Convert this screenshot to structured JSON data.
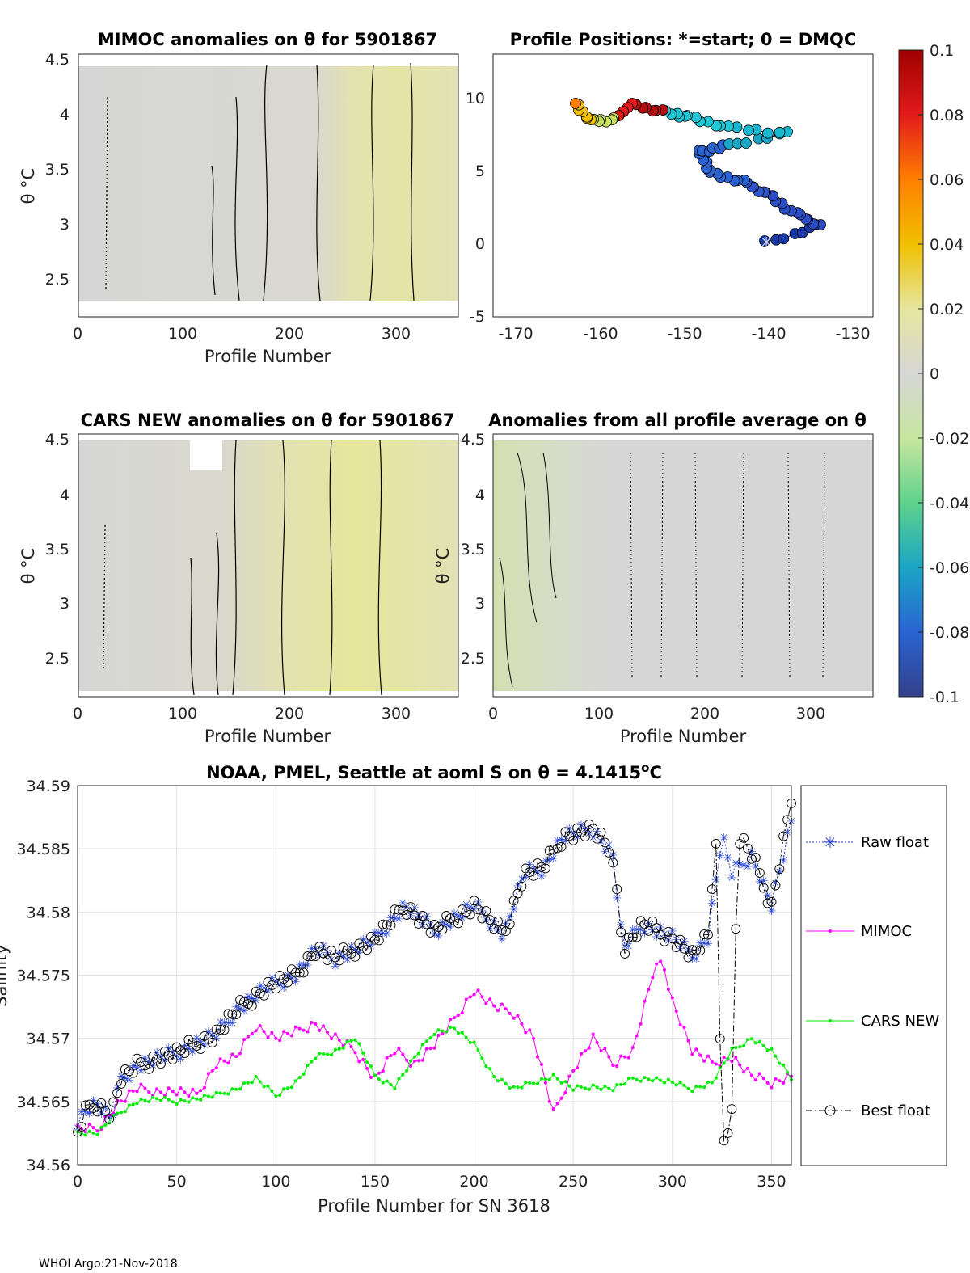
{
  "footer": "WHOI Argo:21-Nov-2018",
  "colors": {
    "raw": "#1f3fd6",
    "mimoc": "#ff00ff",
    "cars": "#00ee00",
    "best": "#000000",
    "panel_gray": "#d6d6d6",
    "panel_yellow": "#e6e6a8",
    "contour": "#000000"
  },
  "panels": {
    "mimoc": {
      "title": "MIMOC anomalies on θ  for 5901867",
      "ylabel": "θ °C",
      "xlabel": "Profile Number",
      "xticks": [
        "0",
        "100",
        "200",
        "300"
      ],
      "yticks": [
        "4.5",
        "4",
        "3.5",
        "3",
        "2.5"
      ]
    },
    "positions": {
      "title": "Profile Positions: *=start; 0 = DMQC",
      "xticks": [
        "-170",
        "-160",
        "-150",
        "-140",
        "-130"
      ],
      "yticks": [
        "10",
        "5",
        "0",
        "-5"
      ]
    },
    "cars": {
      "title": "CARS NEW anomalies on θ for 5901867",
      "ylabel": "θ °C",
      "xlabel": "Profile Number",
      "xticks": [
        "0",
        "100",
        "200",
        "300"
      ],
      "yticks": [
        "4.5",
        "4",
        "3.5",
        "3",
        "2.5"
      ]
    },
    "allavg": {
      "title": "Anomalies from all profile average on θ",
      "ylabel": "θ °C",
      "xlabel": "Profile Number",
      "xticks": [
        "0",
        "100",
        "200",
        "300"
      ],
      "yticks": [
        "4.5",
        "4",
        "3.5",
        "3",
        "2.5"
      ]
    }
  },
  "colorbar": {
    "labels": [
      "0.1",
      "0.08",
      "0.06",
      "0.04",
      "0.02",
      "0",
      "-0.02",
      "-0.04",
      "-0.06",
      "-0.08",
      "-0.1"
    ]
  },
  "chart_data": {
    "type": "line",
    "title": "NOAA, PMEL, Seattle at aoml S on θ = 4.1415°C",
    "title_prefix": "NOAA, PMEL, Seattle at aoml S on θ = 4.1415",
    "title_sup": "o",
    "title_suffix": "C",
    "xlabel": "Profile Number for SN 3618",
    "ylabel": "Salinity",
    "xlim": [
      0,
      360
    ],
    "ylim": [
      34.56,
      34.59
    ],
    "xticks": [
      "0",
      "50",
      "100",
      "150",
      "200",
      "250",
      "300",
      "350"
    ],
    "yticks": [
      "34.59",
      "34.585",
      "34.58",
      "34.575",
      "34.57",
      "34.565",
      "34.56"
    ],
    "legend": [
      "Raw float",
      "MIMOC",
      "CARS NEW",
      "Best float"
    ],
    "series": [
      {
        "name": "Raw float",
        "knots": [
          [
            0,
            34.5635
          ],
          [
            5,
            34.5645
          ],
          [
            10,
            34.5648
          ],
          [
            17,
            34.5635
          ],
          [
            22,
            34.5668
          ],
          [
            30,
            34.5678
          ],
          [
            40,
            34.5684
          ],
          [
            50,
            34.5688
          ],
          [
            60,
            34.5696
          ],
          [
            70,
            34.5703
          ],
          [
            80,
            34.5722
          ],
          [
            95,
            34.574
          ],
          [
            110,
            34.575
          ],
          [
            120,
            34.577
          ],
          [
            130,
            34.5763
          ],
          [
            150,
            34.5778
          ],
          [
            165,
            34.5805
          ],
          [
            180,
            34.5785
          ],
          [
            200,
            34.5805
          ],
          [
            215,
            34.5782
          ],
          [
            225,
            34.583
          ],
          [
            235,
            34.5835
          ],
          [
            245,
            34.586
          ],
          [
            260,
            34.5865
          ],
          [
            270,
            34.5845
          ],
          [
            275,
            34.577
          ],
          [
            285,
            34.579
          ],
          [
            300,
            34.578
          ],
          [
            310,
            34.5765
          ],
          [
            318,
            34.578
          ],
          [
            325,
            34.586
          ],
          [
            330,
            34.583
          ],
          [
            340,
            34.5845
          ],
          [
            350,
            34.5805
          ],
          [
            360,
            34.587
          ]
        ]
      },
      {
        "name": "MIMOC",
        "knots": [
          [
            0,
            34.5628
          ],
          [
            10,
            34.5628
          ],
          [
            20,
            34.5648
          ],
          [
            30,
            34.566
          ],
          [
            40,
            34.5658
          ],
          [
            50,
            34.5658
          ],
          [
            60,
            34.5655
          ],
          [
            70,
            34.568
          ],
          [
            80,
            34.5685
          ],
          [
            90,
            34.571
          ],
          [
            100,
            34.57
          ],
          [
            110,
            34.5705
          ],
          [
            120,
            34.5712
          ],
          [
            130,
            34.57
          ],
          [
            140,
            34.569
          ],
          [
            150,
            34.5668
          ],
          [
            160,
            34.569
          ],
          [
            170,
            34.568
          ],
          [
            180,
            34.5695
          ],
          [
            190,
            34.5715
          ],
          [
            200,
            34.5738
          ],
          [
            210,
            34.5725
          ],
          [
            220,
            34.572
          ],
          [
            230,
            34.57
          ],
          [
            240,
            34.564
          ],
          [
            250,
            34.5675
          ],
          [
            260,
            34.57
          ],
          [
            270,
            34.568
          ],
          [
            280,
            34.569
          ],
          [
            290,
            34.575
          ],
          [
            295,
            34.5762
          ],
          [
            300,
            34.573
          ],
          [
            310,
            34.569
          ],
          [
            320,
            34.568
          ],
          [
            330,
            34.5685
          ],
          [
            340,
            34.567
          ],
          [
            350,
            34.5665
          ],
          [
            360,
            34.567
          ]
        ]
      },
      {
        "name": "CARS NEW",
        "knots": [
          [
            0,
            34.5625
          ],
          [
            10,
            34.5625
          ],
          [
            20,
            34.564
          ],
          [
            30,
            34.565
          ],
          [
            40,
            34.5652
          ],
          [
            50,
            34.565
          ],
          [
            60,
            34.5652
          ],
          [
            70,
            34.5655
          ],
          [
            80,
            34.566
          ],
          [
            90,
            34.5668
          ],
          [
            100,
            34.5655
          ],
          [
            110,
            34.5665
          ],
          [
            120,
            34.5685
          ],
          [
            130,
            34.569
          ],
          [
            140,
            34.57
          ],
          [
            150,
            34.567
          ],
          [
            160,
            34.5662
          ],
          [
            170,
            34.5685
          ],
          [
            180,
            34.5705
          ],
          [
            190,
            34.5708
          ],
          [
            200,
            34.5695
          ],
          [
            210,
            34.567
          ],
          [
            220,
            34.566
          ],
          [
            230,
            34.5665
          ],
          [
            240,
            34.567
          ],
          [
            250,
            34.566
          ],
          [
            260,
            34.5662
          ],
          [
            270,
            34.566
          ],
          [
            280,
            34.5668
          ],
          [
            290,
            34.5668
          ],
          [
            300,
            34.5665
          ],
          [
            310,
            34.566
          ],
          [
            320,
            34.5665
          ],
          [
            330,
            34.569
          ],
          [
            340,
            34.57
          ],
          [
            350,
            34.569
          ],
          [
            360,
            34.5668
          ]
        ]
      },
      {
        "name": "Best float",
        "knots": [
          [
            0,
            34.5625
          ],
          [
            5,
            34.5645
          ],
          [
            10,
            34.5648
          ],
          [
            17,
            34.564
          ],
          [
            22,
            34.5668
          ],
          [
            30,
            34.5678
          ],
          [
            40,
            34.5684
          ],
          [
            50,
            34.5688
          ],
          [
            60,
            34.5696
          ],
          [
            70,
            34.5703
          ],
          [
            80,
            34.5722
          ],
          [
            95,
            34.574
          ],
          [
            110,
            34.575
          ],
          [
            120,
            34.577
          ],
          [
            130,
            34.5763
          ],
          [
            150,
            34.5778
          ],
          [
            165,
            34.5805
          ],
          [
            180,
            34.5785
          ],
          [
            200,
            34.5805
          ],
          [
            215,
            34.5782
          ],
          [
            225,
            34.583
          ],
          [
            235,
            34.5835
          ],
          [
            245,
            34.586
          ],
          [
            260,
            34.5865
          ],
          [
            270,
            34.5845
          ],
          [
            275,
            34.577
          ],
          [
            285,
            34.579
          ],
          [
            300,
            34.578
          ],
          [
            310,
            34.5765
          ],
          [
            318,
            34.578
          ],
          [
            322,
            34.586
          ],
          [
            325,
            34.5615
          ],
          [
            330,
            34.564
          ],
          [
            333,
            34.586
          ],
          [
            340,
            34.5845
          ],
          [
            350,
            34.5805
          ],
          [
            360,
            34.589
          ]
        ]
      }
    ]
  }
}
